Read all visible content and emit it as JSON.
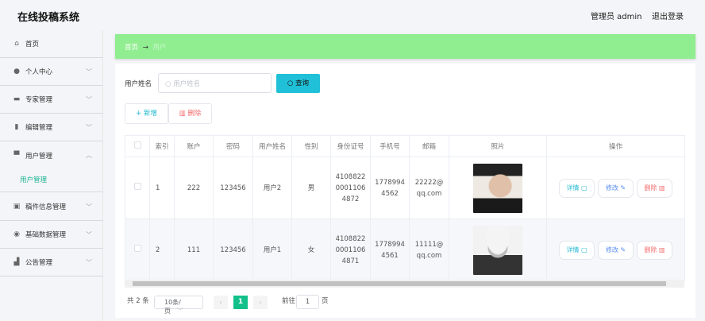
{
  "app": {
    "title": "在线投稿系统",
    "user": "管理员 admin",
    "logout": "退出登录"
  },
  "sidebar": {
    "items": [
      {
        "label": "首页",
        "icon": "home-icon"
      },
      {
        "label": "个人中心",
        "icon": "user-icon"
      },
      {
        "label": "专家管理",
        "icon": "briefcase-icon"
      },
      {
        "label": "编辑管理",
        "icon": "chart-icon"
      },
      {
        "label": "用户管理",
        "icon": "folder-icon"
      },
      {
        "label": "稿件信息管理",
        "icon": "clipboard-icon"
      },
      {
        "label": "基础数据管理",
        "icon": "gauge-icon"
      },
      {
        "label": "公告管理",
        "icon": "bar-chart-icon"
      }
    ],
    "sub": "用户管理"
  },
  "breadcrumb": {
    "home": "首页",
    "arrow": "→",
    "current": "用户"
  },
  "search": {
    "label": "用户姓名",
    "placeholder": "用户姓名",
    "button": "查询"
  },
  "actions": {
    "add": "新增",
    "delete": "删除"
  },
  "table": {
    "headers": [
      "索引",
      "账户",
      "密码",
      "用户姓名",
      "性别",
      "身份证号",
      "手机号",
      "邮箱",
      "照片",
      "操作"
    ],
    "rows": [
      {
        "index": "1",
        "account": "222",
        "password": "123456",
        "name": "用户2",
        "gender": "男",
        "id1": "4108822",
        "id2": "0001106",
        "id3": "4872",
        "phone1": "1778994",
        "phone2": "4562",
        "email1": "22222@",
        "email2": "qq.com"
      },
      {
        "index": "2",
        "account": "111",
        "password": "123456",
        "name": "用户1",
        "gender": "女",
        "id1": "4108822",
        "id2": "0001106",
        "id3": "4871",
        "phone1": "1778994",
        "phone2": "4561",
        "email1": "11111@",
        "email2": "qq.com"
      }
    ],
    "ops": {
      "detail": "详情",
      "edit": "修改",
      "delete": "删除"
    }
  },
  "pagination": {
    "total": "共 2 条",
    "page_size": "10条/页",
    "current": "1",
    "goto": "前往",
    "goto_value": "1",
    "page_unit": "页"
  },
  "colors": {
    "accent": "#1ab394",
    "breadcrumb": "#90ee90",
    "query": "#20c0d8",
    "danger": "#f56c6c"
  }
}
